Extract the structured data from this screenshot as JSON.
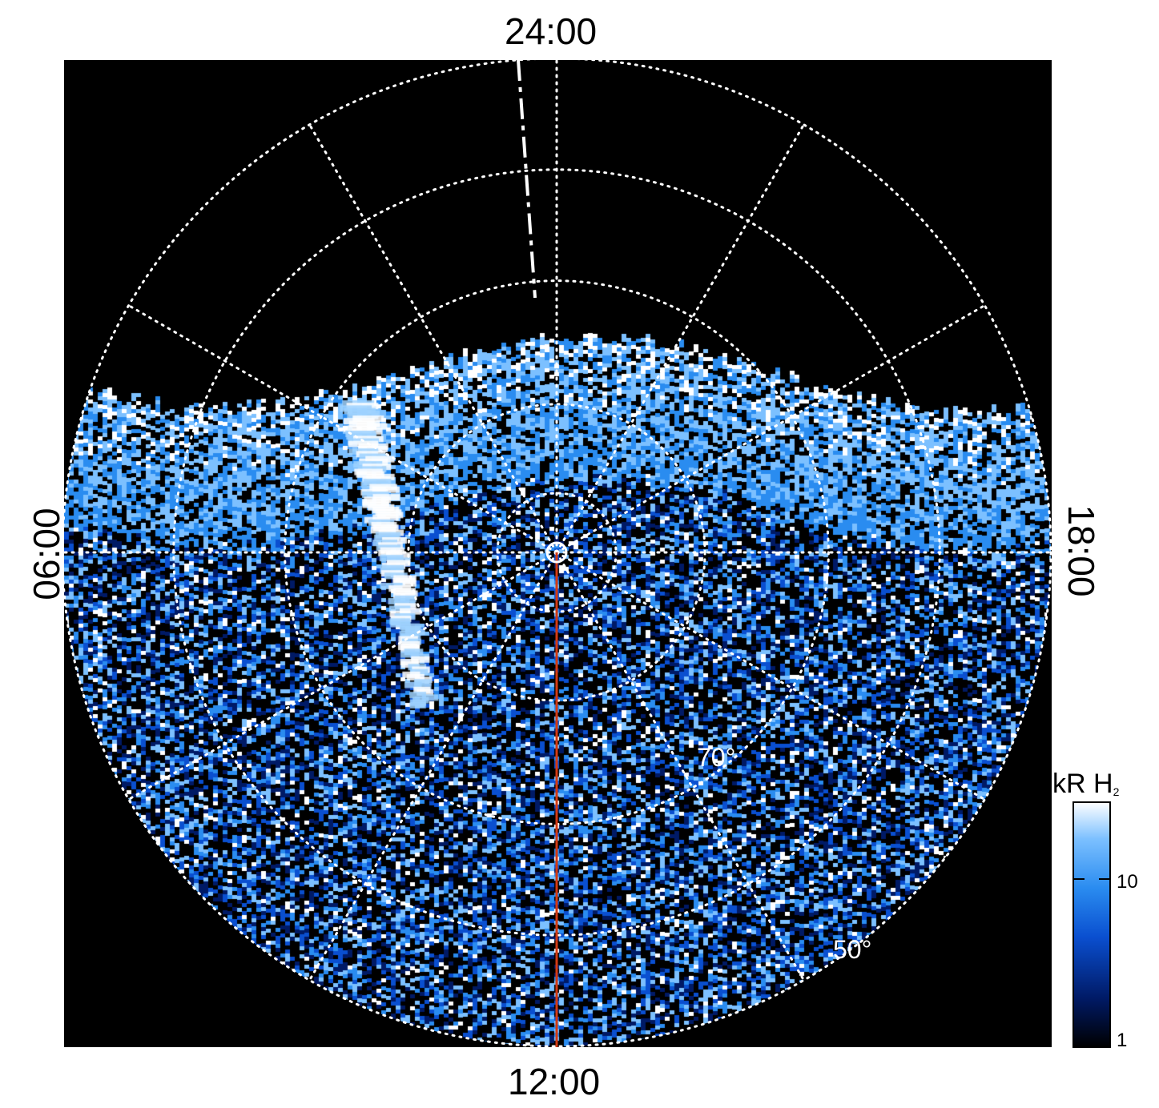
{
  "local_time_labels": {
    "top": "24:00",
    "bottom": "12:00",
    "left": "06:00",
    "right": "18:00"
  },
  "latitude_labels": [
    "70°",
    "50°"
  ],
  "colorbar": {
    "title_main": "kR H",
    "title_sub": "2",
    "ticks": [
      "10",
      "1"
    ],
    "colors": [
      "#000000",
      "#001a66",
      "#0a4fd0",
      "#2a8cf0",
      "#7cc0ff",
      "#ffffff"
    ]
  },
  "colors": {
    "background": "#000000",
    "grid": "#ffffff",
    "meridian_line": "#d23a14"
  }
}
